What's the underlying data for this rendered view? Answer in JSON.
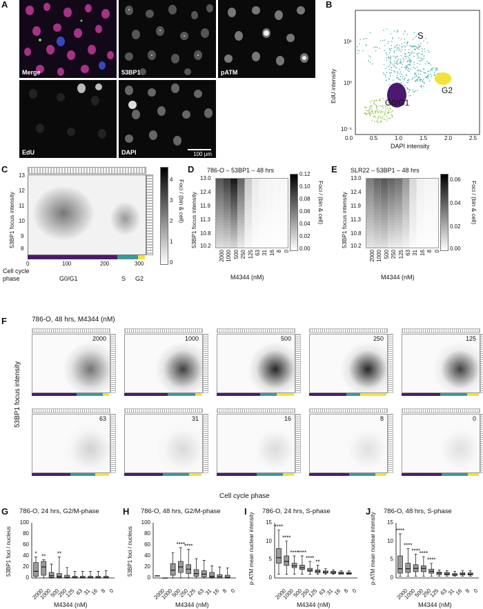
{
  "panels": {
    "A": {
      "letter": "A",
      "labels": {
        "merge": "Merge",
        "bp1": "53BP1",
        "patm": "pATM",
        "edu": "EdU",
        "dapi": "DAPI",
        "scale": "100 μm"
      }
    },
    "B": {
      "letter": "B",
      "xlabel": "DAPI intensity",
      "ylabel": "EdU intensity",
      "xticks": [
        "0.0",
        "0.5",
        "1.0",
        "1.5",
        "2.0",
        "2.5"
      ],
      "yticks": [
        "10¹",
        "10⁰",
        "10⁻¹"
      ],
      "groups": {
        "s": "S",
        "g2": "G2",
        "g0g1": "G0/G1"
      }
    },
    "C": {
      "letter": "C",
      "ylabel": "53BP1 focus intensity",
      "yticks": [
        "13",
        "12",
        "11",
        "10",
        "9",
        "8"
      ],
      "xticks": [
        "0",
        "100",
        "200",
        "300"
      ],
      "cbar_label": "Foci / (bin & cell)",
      "cbar_ticks": [
        "4",
        "3",
        "2",
        "1",
        "0"
      ],
      "row_label1": "Cell cycle",
      "row_label2": "phase",
      "phases": {
        "g0g1": "G0/G1",
        "s": "S",
        "g2": "G2"
      }
    },
    "D": {
      "letter": "D",
      "title": "786-O – 53BP1 – 48 hrs",
      "ylabel": "53BP1 focus intensity",
      "yticks": [
        "13.0",
        "12.4",
        "11.9",
        "11.3",
        "10.8",
        "10.2"
      ],
      "xticks": [
        "2000",
        "1000",
        "500",
        "250",
        "125",
        "63",
        "31",
        "16",
        "8",
        "0"
      ],
      "xlabel": "M4344 (nM)",
      "cbar_label": "Foci / (bin & cell)",
      "cbar_ticks": [
        "0.12",
        "0.10",
        "0.08",
        "0.06",
        "0.04",
        "0.02",
        "0.00"
      ]
    },
    "E": {
      "letter": "E",
      "title": "SLR22 – 53BP1 – 48 hrs",
      "ylabel": "53BP1 focus intensity",
      "yticks": [
        "13.0",
        "12.4",
        "11.9",
        "11.3",
        "10.8",
        "10.2"
      ],
      "xticks": [
        "2000",
        "1000",
        "500",
        "250",
        "125",
        "63",
        "31",
        "16",
        "8",
        "0"
      ],
      "xlabel": "M4344 (nM)",
      "cbar_label": "Foci / (bin & cell)",
      "cbar_ticks": [
        "0.06",
        "0.04",
        "0.02",
        "0.00"
      ]
    },
    "F": {
      "letter": "F",
      "title": "786-O, 48 hrs, M4344 (nM)",
      "ylabel": "53BP1 focus intensity",
      "xlabel": "Cell cycle phase",
      "doses": [
        "2000",
        "1000",
        "500",
        "250",
        "125",
        "63",
        "31",
        "16",
        "8",
        "0"
      ]
    },
    "G": {
      "letter": "G",
      "title": "786-O, 24 hrs, G2/M-phase",
      "ylabel": "53BP1 foci / nucleus",
      "yticks": [
        "100",
        "80",
        "60",
        "40",
        "20",
        "0"
      ],
      "xlabel": "M4344 (nM)"
    },
    "H": {
      "letter": "H",
      "title": "786-O, 48 hrs, G2/M-phase",
      "ylabel": "53BP1 foci / nucleus",
      "yticks": [
        "100",
        "80",
        "60",
        "40",
        "20",
        "0"
      ],
      "xlabel": "M4344 (nM)"
    },
    "I": {
      "letter": "I",
      "title": "786-O, 24 hrs, S-phase",
      "ylabel": "p-ATM mean nuclear intensity",
      "yticks": [
        "15",
        "10",
        "5",
        "0"
      ],
      "xlabel": "M4344 (nM)"
    },
    "J": {
      "letter": "J",
      "title": "786-O, 48 hrs, S-phase",
      "ylabel": "p-ATM mean nuclear intensity",
      "yticks": [
        "15",
        "10",
        "5",
        "0"
      ],
      "xlabel": "M4344 (nM)"
    }
  },
  "doses": [
    "2000",
    "1000",
    "500",
    "250",
    "125",
    "63",
    "31",
    "16",
    "8",
    "0"
  ],
  "box_data": {
    "G": {
      "ymax": 100,
      "boxes": [
        [
          0,
          3,
          12,
          28,
          38
        ],
        [
          0,
          5,
          20,
          30,
          33
        ],
        [
          0,
          1,
          4,
          10,
          25
        ],
        [
          0,
          1,
          3,
          8,
          38
        ],
        [
          0,
          0,
          1,
          5,
          19
        ],
        [
          0,
          0,
          1,
          3,
          12
        ],
        [
          0,
          0,
          1,
          3,
          12
        ],
        [
          0,
          0,
          1,
          3,
          12
        ],
        [
          0,
          0,
          1,
          3,
          12
        ],
        [
          0,
          0,
          1,
          3,
          13
        ]
      ],
      "stars": [
        "*",
        "**",
        "",
        "**",
        "",
        "",
        "",
        "",
        "",
        ""
      ]
    },
    "H": {
      "ymax": 100,
      "boxes": [
        [
          4,
          4,
          4,
          4,
          4
        ],
        [
          0,
          0,
          0,
          0,
          0
        ],
        [
          0,
          5,
          14,
          26,
          46
        ],
        [
          0,
          10,
          20,
          30,
          55
        ],
        [
          0,
          8,
          16,
          24,
          52
        ],
        [
          0,
          3,
          8,
          15,
          35
        ],
        [
          0,
          2,
          7,
          13,
          32
        ],
        [
          0,
          1,
          3,
          10,
          22
        ],
        [
          0,
          0,
          2,
          6,
          20
        ],
        [
          0,
          0,
          1,
          5,
          18
        ]
      ],
      "stars": [
        "",
        "",
        "",
        "****",
        "****",
        "",
        "",
        "",
        "",
        ""
      ]
    },
    "I": {
      "ymax": 15,
      "boxes": [
        [
          1,
          4,
          5.5,
          8,
          13
        ],
        [
          1,
          3.4,
          4.5,
          6,
          10
        ],
        [
          1,
          2.8,
          3.3,
          4,
          6
        ],
        [
          1,
          2.3,
          2.8,
          3.5,
          6
        ],
        [
          1,
          1.8,
          2.1,
          2.6,
          4.5
        ],
        [
          1,
          1.4,
          1.8,
          2.2,
          3.5
        ],
        [
          1,
          1.3,
          1.6,
          1.9,
          2.5
        ],
        [
          1,
          1.2,
          1.5,
          1.8,
          2.2
        ],
        [
          1,
          1,
          1.3,
          1.6,
          2
        ],
        [
          1,
          1,
          1.2,
          1.5,
          1.9
        ]
      ],
      "stars": [
        "****",
        "****",
        "****",
        "****",
        "****",
        "**",
        "",
        "",
        "",
        ""
      ]
    },
    "J": {
      "ymax": 15,
      "boxes": [
        [
          0.5,
          1.3,
          2.5,
          6,
          12
        ],
        [
          0.5,
          1.5,
          2.5,
          4,
          8
        ],
        [
          0.5,
          1.7,
          2.6,
          3.6,
          6.5
        ],
        [
          0.5,
          1.7,
          2.6,
          3.3,
          5.8
        ],
        [
          0.5,
          1.3,
          1.8,
          2.4,
          4
        ],
        [
          0.5,
          0.9,
          1.3,
          1.6,
          2.2
        ],
        [
          0.5,
          0.8,
          1.1,
          1.5,
          2
        ],
        [
          0.5,
          0.7,
          0.9,
          1.2,
          1.8
        ],
        [
          0.5,
          0.8,
          1.1,
          1.4,
          2
        ],
        [
          0.5,
          0.8,
          1,
          1.4,
          2
        ]
      ],
      "stars": [
        "****",
        "****",
        "****",
        "****",
        "****",
        "",
        "",
        "",
        "",
        ""
      ]
    }
  },
  "colors": {
    "purple": "#4b1a6e",
    "teal": "#3b9a98",
    "yellow": "#f2e23a",
    "green": "#8bc34a",
    "cyan": "#4fb3ad"
  }
}
